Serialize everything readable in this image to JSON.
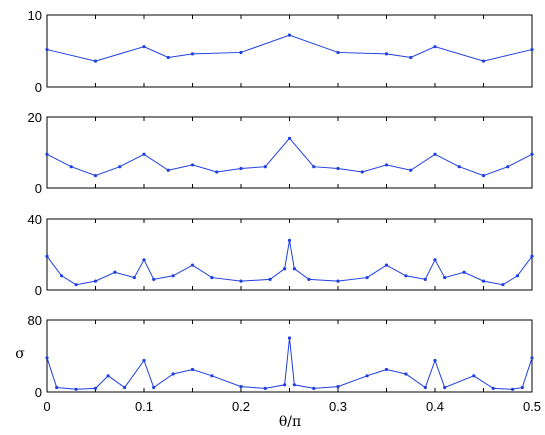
{
  "chart_data": [
    {
      "type": "line",
      "x": [
        0,
        0.05,
        0.1,
        0.125,
        0.15,
        0.2,
        0.25,
        0.3,
        0.35,
        0.375,
        0.4,
        0.45,
        0.5
      ],
      "series": [
        {
          "values": [
            5.2,
            3.6,
            5.6,
            4.1,
            4.6,
            4.8,
            7.2,
            4.8,
            4.6,
            4.1,
            5.6,
            3.6,
            5.2
          ]
        }
      ],
      "ylim": [
        0,
        10
      ],
      "yticks": [
        "0",
        "10"
      ],
      "xlim": [
        0,
        0.5
      ],
      "color": "#1f3fe0"
    },
    {
      "type": "line",
      "x": [
        0,
        0.025,
        0.05,
        0.075,
        0.1,
        0.125,
        0.15,
        0.175,
        0.2,
        0.225,
        0.25,
        0.275,
        0.3,
        0.325,
        0.35,
        0.375,
        0.4,
        0.425,
        0.45,
        0.475,
        0.5
      ],
      "series": [
        {
          "values": [
            9.5,
            6.0,
            3.5,
            6.0,
            9.5,
            5.0,
            6.5,
            4.5,
            5.5,
            6.0,
            14.0,
            6.0,
            5.5,
            4.5,
            6.5,
            5.0,
            9.5,
            6.0,
            3.5,
            6.0,
            9.5
          ]
        }
      ],
      "ylim": [
        0,
        20
      ],
      "yticks": [
        "0",
        "20"
      ],
      "xlim": [
        0,
        0.5
      ],
      "color": "#1f3fe0"
    },
    {
      "type": "line",
      "x": [
        0,
        0.015,
        0.03,
        0.05,
        0.07,
        0.09,
        0.1,
        0.11,
        0.13,
        0.15,
        0.17,
        0.2,
        0.23,
        0.245,
        0.25,
        0.255,
        0.27,
        0.3,
        0.33,
        0.35,
        0.37,
        0.39,
        0.4,
        0.41,
        0.43,
        0.45,
        0.47,
        0.485,
        0.5
      ],
      "series": [
        {
          "values": [
            19,
            8,
            3,
            5,
            10,
            7,
            17,
            6,
            8,
            14,
            7,
            5,
            6,
            12,
            28,
            12,
            6,
            5,
            7,
            14,
            8,
            6,
            17,
            7,
            10,
            5,
            3,
            8,
            19
          ]
        }
      ],
      "ylim": [
        0,
        40
      ],
      "yticks": [
        "0",
        "40"
      ],
      "xlim": [
        0,
        0.5
      ],
      "color": "#1f3fe0"
    },
    {
      "type": "line",
      "x": [
        0,
        0.01,
        0.03,
        0.05,
        0.063,
        0.08,
        0.1,
        0.11,
        0.13,
        0.15,
        0.17,
        0.2,
        0.225,
        0.245,
        0.25,
        0.255,
        0.275,
        0.3,
        0.33,
        0.35,
        0.37,
        0.39,
        0.4,
        0.41,
        0.44,
        0.46,
        0.48,
        0.49,
        0.5
      ],
      "series": [
        {
          "values": [
            38,
            5,
            3,
            4,
            18,
            5,
            35,
            5,
            20,
            25,
            18,
            6,
            4,
            8,
            60,
            8,
            4,
            6,
            18,
            25,
            20,
            5,
            35,
            5,
            18,
            4,
            3,
            5,
            38
          ]
        }
      ],
      "ylim": [
        0,
        80
      ],
      "yticks": [
        "0",
        "80"
      ],
      "xlim": [
        0,
        0.5
      ],
      "ylabel": "σ",
      "xlabel": "θ/π",
      "xticks": [
        "0",
        "0.1",
        "0.2",
        "0.3",
        "0.4",
        "0.5"
      ],
      "color": "#1f3fe0"
    }
  ]
}
